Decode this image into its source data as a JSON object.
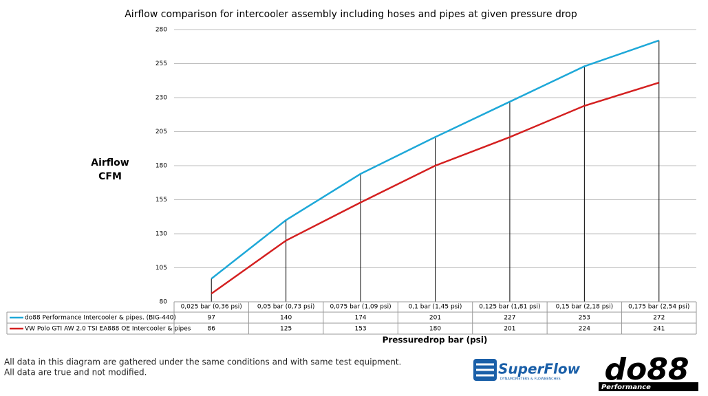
{
  "chart_data": {
    "type": "line",
    "title": "Airflow comparison for intercooler assembly including hoses and pipes at given pressure drop",
    "y_label": [
      "Airflow",
      "CFM"
    ],
    "x_label": "Pressuredrop bar (psi)",
    "categories": [
      "0,025 bar (0,36 psi)",
      "0,05 bar (0,73 psi)",
      "0,075 bar (1,09 psi)",
      "0,1 bar (1,45 psi)",
      "0,125 bar (1,81 psi)",
      "0,15 bar (2,18 psi)",
      "0,175 bar (2,54 psi)"
    ],
    "series": [
      {
        "name": "do88 Performance Intercooler & pipes. (BIG-440)",
        "color": "#1ea8d8",
        "values": [
          97,
          140,
          174,
          201,
          227,
          253,
          272
        ]
      },
      {
        "name": "VW Polo GTI AW 2.0 TSI EA888 OE Intercooler & pipes",
        "color": "#d42020",
        "values": [
          86,
          125,
          153,
          180,
          201,
          224,
          241
        ]
      }
    ],
    "ylim": [
      80,
      280
    ],
    "yticks": [
      80,
      105,
      130,
      155,
      180,
      205,
      230,
      255,
      280
    ],
    "grid": true,
    "notes": [
      "All data in this diagram are gathered under the same conditions and with same test equipment.",
      "All data are true and not modified."
    ],
    "logos": {
      "superflow": "SuperFlow",
      "superflow_tagline": "DYNAMOMETERS & FLOWBENCHES",
      "do88": "do88",
      "do88_tagline": "Performance"
    }
  }
}
